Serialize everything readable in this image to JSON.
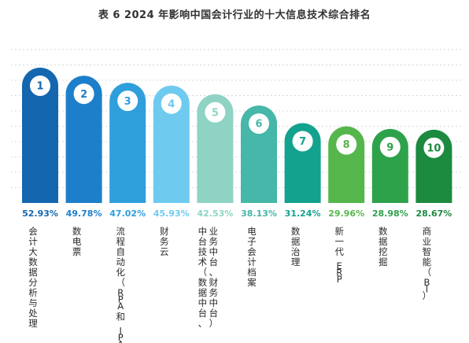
{
  "title": "表 6  2024 年影响中国会计行业的十大信息技术综合排名",
  "chart_data": {
    "type": "bar",
    "title": "表 6  2024 年影响中国会计行业的十大信息技术综合排名",
    "xlabel": "",
    "ylabel": "",
    "ylim": [
      0,
      60
    ],
    "grid": true,
    "categories": [
      "会计大数据分析与处理",
      "数电票",
      "流程自动化（RPA 和 IPA）",
      "财务云",
      "中台技术（数据中台、业务中台、财务中台）",
      "电子会计档案",
      "数据治理",
      "新一代 ERP",
      "数据挖掘",
      "商业智能（BI）"
    ],
    "ranks": [
      "1",
      "2",
      "3",
      "4",
      "5",
      "6",
      "7",
      "8",
      "9",
      "10"
    ],
    "values": [
      52.93,
      49.78,
      47.02,
      45.93,
      42.53,
      38.13,
      31.24,
      29.96,
      28.98,
      28.67
    ],
    "value_labels": [
      "52.93%",
      "49.78%",
      "47.02%",
      "45.93%",
      "42.53%",
      "38.13%",
      "31.24%",
      "29.96%",
      "28.98%",
      "28.67%"
    ],
    "category_lines": [
      [
        "会计大数据分析与处理"
      ],
      [
        "数电票"
      ],
      [
        "流程自动化（RPA 和 IPA）"
      ],
      [
        "财务云"
      ],
      [
        "中台技术（数据中台、",
        "业务中台、财务中台）"
      ],
      [
        "电子会计档案"
      ],
      [
        "数据治理"
      ],
      [
        "新一代 ERP"
      ],
      [
        "数据挖掘"
      ],
      [
        "商业智能（BI）"
      ]
    ],
    "colors": [
      "#1466ae",
      "#1d7fc9",
      "#2f9fdc",
      "#6fcaf0",
      "#8ed3c4",
      "#46b7a8",
      "#13a28d",
      "#55b64c",
      "#2ea24a",
      "#1c8a3f"
    ],
    "label_colors": [
      "#1466ae",
      "#1d7fc9",
      "#2f9fdc",
      "#6fcaf0",
      "#8ed3c4",
      "#46b7a8",
      "#13a28d",
      "#55b64c",
      "#2ea24a",
      "#1c8a3f"
    ]
  }
}
